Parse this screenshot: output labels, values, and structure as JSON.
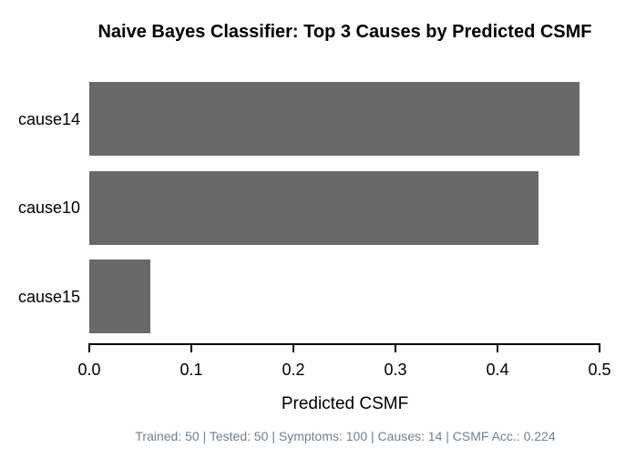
{
  "chart_data": {
    "type": "bar",
    "orientation": "horizontal",
    "title": "Naive Bayes Classifier: Top 3 Causes by Predicted CSMF",
    "categories": [
      "cause14",
      "cause10",
      "cause15"
    ],
    "values": [
      0.48,
      0.44,
      0.06
    ],
    "xlabel": "Predicted CSMF",
    "ylabel": "",
    "xlim": [
      0.0,
      0.5
    ],
    "x_tick_labels": [
      "0.0",
      "0.1",
      "0.2",
      "0.3",
      "0.4",
      "0.5"
    ],
    "x_tick_values": [
      0.0,
      0.1,
      0.2,
      0.3,
      0.4,
      0.5
    ],
    "grid": false,
    "legend": false,
    "bar_color": "#696969",
    "background_color": "#ffffff",
    "text_color": "#000000"
  },
  "footer": {
    "text": "Trained: 50 | Tested: 50 | Symptoms: 100 | Causes: 14 | CSMF Acc.: 0.224",
    "color": "#708090"
  }
}
